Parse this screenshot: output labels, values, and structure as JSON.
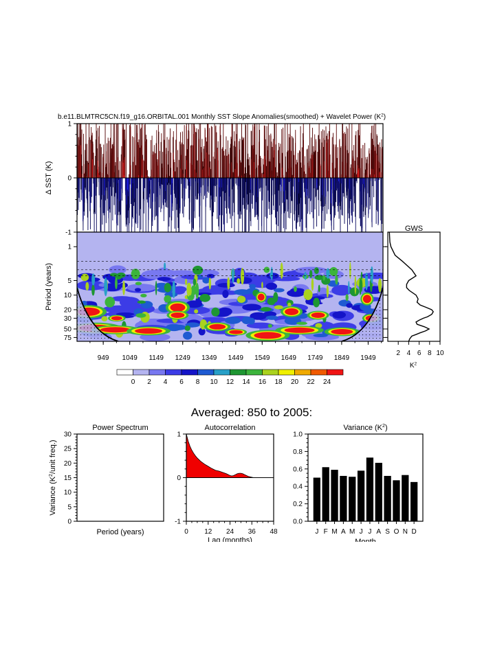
{
  "chart_data": [
    {
      "type": "line",
      "title": "b.e11.BLMTRC5CN.f19_g16.ORBITAL.001 Monthly SST Slope Anomalies(smoothed) + Wavelet Power (K",
      "title_sup": "2",
      "title_end": ")",
      "ylabel": "Δ SST (K)",
      "ylim": [
        -1,
        1
      ],
      "yticks": [
        "1",
        "0",
        "-1"
      ],
      "note": "dense monthly anomaly trace 850-2005; positive red, negative blue"
    },
    {
      "type": "heatmap",
      "ylabel": "Period (years)",
      "yticks": [
        1,
        5,
        10,
        20,
        30,
        50,
        75
      ],
      "xticks": [
        949,
        1049,
        1149,
        1249,
        1349,
        1449,
        1549,
        1649,
        1749,
        1849,
        1949
      ],
      "xlim": [
        850,
        2005
      ],
      "ylim_period": [
        0.5,
        90
      ],
      "colorbar_labels": [
        "0",
        "2",
        "4",
        "6",
        "8",
        "10",
        "12",
        "14",
        "16",
        "18",
        "20",
        "22",
        "24"
      ],
      "colorbar_colors": [
        "#ffffff",
        "#b4b4f0",
        "#7878f0",
        "#3c3ce6",
        "#1414c8",
        "#1e5ad2",
        "#28a0c8",
        "#1e9632",
        "#3cb43c",
        "#aad21e",
        "#f0f000",
        "#f0aa00",
        "#f05a00",
        "#f01414"
      ]
    },
    {
      "type": "line",
      "title": "GWS",
      "xlabel": "K",
      "xlabel_sup": "2",
      "xticks": [
        2,
        4,
        6,
        8,
        10
      ],
      "xlim": [
        0,
        10
      ],
      "period": [
        0.5,
        0.8,
        1,
        1.5,
        2,
        3,
        4,
        5,
        6,
        7,
        8,
        10,
        12,
        14,
        16,
        18,
        20,
        22,
        25,
        28,
        30,
        33,
        36,
        40,
        45,
        50,
        55,
        60,
        65,
        70,
        80,
        90
      ],
      "power": [
        0.3,
        0.4,
        0.6,
        1.4,
        2.8,
        4.6,
        5.4,
        4.0,
        3.6,
        3.6,
        4.1,
        5.4,
        5.8,
        5.6,
        6.2,
        7.4,
        8.4,
        8.7,
        8.4,
        7.6,
        6.8,
        6.0,
        5.4,
        5.6,
        7.0,
        7.9,
        7.2,
        6.2,
        5.4,
        4.6,
        4.2,
        4.0
      ]
    },
    {
      "type": "line",
      "title": "Power Spectrum",
      "xlabel": "Period (years)",
      "ylabel": "Variance (K",
      "ylabel_sup": "2",
      "ylabel_end": "/unit freq.)",
      "ylim": [
        0,
        30
      ],
      "yticks": [
        0,
        5,
        10,
        15,
        20,
        25,
        30
      ]
    },
    {
      "type": "area",
      "title": "Autocorrelation",
      "xlabel": "Lag (months)",
      "xlim": [
        0,
        48
      ],
      "ylim": [
        -1,
        1
      ],
      "xticks": [
        0,
        12,
        24,
        36,
        48
      ],
      "yticks": [
        1,
        0,
        -1
      ],
      "x": [
        0,
        1,
        2,
        3,
        4,
        5,
        6,
        7,
        8,
        10,
        12,
        14,
        16,
        18,
        20,
        22,
        24,
        25,
        26,
        27,
        28,
        29,
        30,
        31,
        32,
        33,
        34,
        35,
        36,
        37,
        38,
        40,
        44,
        48
      ],
      "y": [
        1.0,
        0.84,
        0.72,
        0.63,
        0.56,
        0.5,
        0.45,
        0.41,
        0.37,
        0.31,
        0.26,
        0.21,
        0.17,
        0.15,
        0.12,
        0.09,
        0.05,
        0.04,
        0.05,
        0.07,
        0.09,
        0.1,
        0.1,
        0.09,
        0.07,
        0.05,
        0.03,
        0.02,
        0.01,
        0.0,
        0.0,
        0.0,
        0.0,
        0.0
      ]
    },
    {
      "type": "bar",
      "title": "Variance (K",
      "title_sup": "2",
      "title_end": ")",
      "xlabel": "Month",
      "categories": [
        "J",
        "F",
        "M",
        "A",
        "M",
        "J",
        "J",
        "A",
        "S",
        "O",
        "N",
        "D"
      ],
      "values": [
        0.5,
        0.62,
        0.59,
        0.52,
        0.51,
        0.58,
        0.73,
        0.67,
        0.52,
        0.47,
        0.53,
        0.45
      ],
      "ylim": [
        0,
        1.0
      ],
      "yticks": [
        "0.0",
        "0.2",
        "0.4",
        "0.6",
        "0.8",
        "1.0"
      ]
    }
  ],
  "heading": "Averaged: 850 to 2005:"
}
